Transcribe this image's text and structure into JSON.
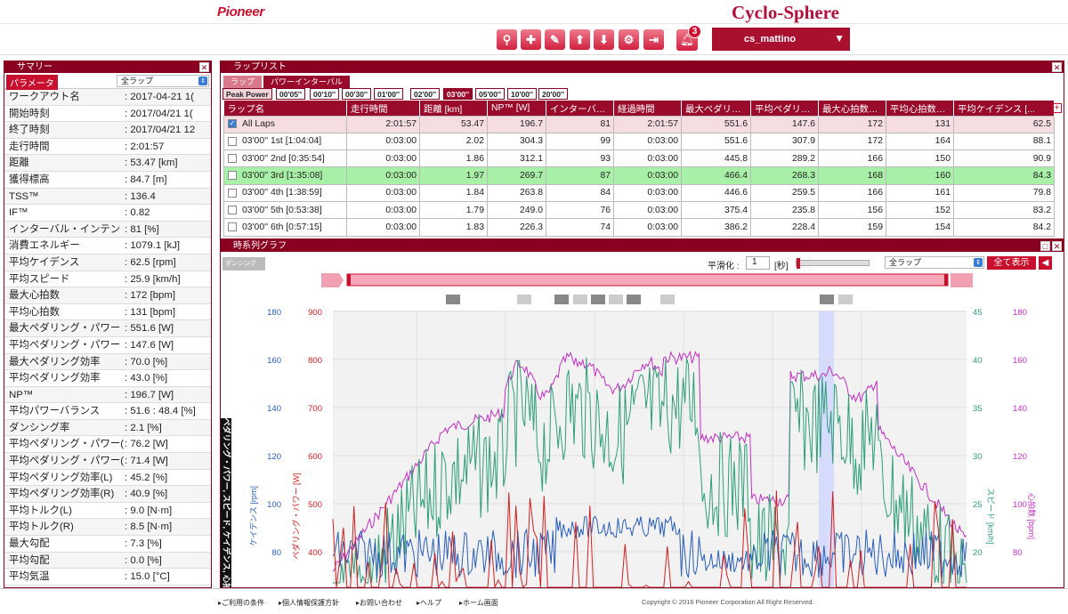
{
  "header": {
    "logo": "Pioneer",
    "brand": "Cyclo-Sphere",
    "user": "cs_mattino",
    "notify_count": "3"
  },
  "summary": {
    "title": "サマリー",
    "param_label": "パラメータ",
    "lap_select": "全ラップ",
    "rows": [
      {
        "k": "ワークアウト名",
        "v": ": 2017-04-21 1("
      },
      {
        "k": "開始時刻",
        "v": ": 2017/04/21 1("
      },
      {
        "k": "終了時刻",
        "v": ": 2017/04/21 12"
      },
      {
        "k": "走行時間",
        "v": ": 2:01:57"
      },
      {
        "k": "距離",
        "v": ": 53.47 [km]"
      },
      {
        "k": "獲得標高",
        "v": ": 84.7 [m]"
      },
      {
        "k": "TSS™",
        "v": ": 136.4"
      },
      {
        "k": "IF™",
        "v": ": 0.82"
      },
      {
        "k": "インターバル・インテン",
        "v": ": 81 [%]"
      },
      {
        "k": "消費エネルギー",
        "v": ": 1079.1 [kJ]"
      },
      {
        "k": "平均ケイデンス",
        "v": ": 62.5 [rpm]"
      },
      {
        "k": "平均スピード",
        "v": ": 25.9 [km/h]"
      },
      {
        "k": "最大心拍数",
        "v": ": 172 [bpm]"
      },
      {
        "k": "平均心拍数",
        "v": ": 131 [bpm]"
      },
      {
        "k": "最大ペダリング・パワー",
        "v": ": 551.6 [W]"
      },
      {
        "k": "平均ペダリング・パワー",
        "v": ": 147.6 [W]"
      },
      {
        "k": "最大ペダリング効率",
        "v": ": 70.0 [%]"
      },
      {
        "k": "平均ペダリング効率",
        "v": ": 43.0 [%]"
      },
      {
        "k": "NP™",
        "v": ": 196.7 [W]"
      },
      {
        "k": "平均パワーバランス",
        "v": ": 51.6 : 48.4 [%]"
      },
      {
        "k": "ダンシング率",
        "v": ": 2.1 [%]"
      },
      {
        "k": "平均ペダリング・パワー(L",
        "v": ": 76.2 [W]"
      },
      {
        "k": "平均ペダリング・パワー(F",
        "v": ": 71.4 [W]"
      },
      {
        "k": "平均ペダリング効率(L)",
        "v": ": 45.2 [%]"
      },
      {
        "k": "平均ペダリング効率(R)",
        "v": ": 40.9 [%]"
      },
      {
        "k": "平均トルク(L)",
        "v": ": 9.0 [N·m]"
      },
      {
        "k": "平均トルク(R)",
        "v": ": 8.5 [N·m]"
      },
      {
        "k": "最大勾配",
        "v": ": 7.3 [%]"
      },
      {
        "k": "平均勾配",
        "v": ": 0.0 [%]"
      },
      {
        "k": "平均気温",
        "v": ": 15.0 [°C]"
      }
    ]
  },
  "laplist": {
    "title": "ラップリスト",
    "tab_lap": "ラップ",
    "tab_interval": "パワーインターバル",
    "peak_label": "Peak Power",
    "peak_tabs": [
      "00'05''",
      "00'10''",
      "00'30''",
      "01'00''",
      "02'00''",
      "03'00''",
      "05'00''",
      "10'00''",
      "20'00''"
    ],
    "columns": [
      "ラップ名",
      "走行時間",
      "距離 [km]",
      "NP™ [W]",
      "インターバ…",
      "経過時間",
      "最大ペダリ…",
      "平均ペダリ…",
      "最大心拍数…",
      "平均心拍数…",
      "平均ケイデンス [..."
    ],
    "rows": [
      [
        "All Laps",
        "2:01:57",
        "53.47",
        "196.7",
        "81",
        "2:01:57",
        "551.6",
        "147.6",
        "172",
        "131",
        "62.5"
      ],
      [
        "03'00'' 1st [1:04:04]",
        "0:03:00",
        "2.02",
        "304.3",
        "99",
        "0:03:00",
        "551.6",
        "307.9",
        "172",
        "164",
        "88.1"
      ],
      [
        "03'00'' 2nd [0:35:54]",
        "0:03:00",
        "1.86",
        "312.1",
        "93",
        "0:03:00",
        "445.8",
        "289.2",
        "166",
        "150",
        "90.9"
      ],
      [
        "03'00'' 3rd [1:35:08]",
        "0:03:00",
        "1.97",
        "269.7",
        "87",
        "0:03:00",
        "466.4",
        "268.3",
        "168",
        "160",
        "84.3"
      ],
      [
        "03'00'' 4th [1:38:59]",
        "0:03:00",
        "1.84",
        "263.8",
        "84",
        "0:03:00",
        "446.6",
        "259.5",
        "166",
        "161",
        "79.8"
      ],
      [
        "03'00'' 5th [0:53:38]",
        "0:03:00",
        "1.79",
        "249.0",
        "76",
        "0:03:00",
        "375.4",
        "235.8",
        "156",
        "152",
        "83.2"
      ],
      [
        "03'00'' 6th [0:57:15]",
        "0:03:00",
        "1.83",
        "226.3",
        "74",
        "0:03:00",
        "386.2",
        "228.4",
        "159",
        "154",
        "84.2"
      ]
    ]
  },
  "graph": {
    "title": "時系列グラフ",
    "smooth_label": "平滑化 :",
    "smooth_value": "1",
    "smooth_unit": "[秒]",
    "lap_select": "全ラップ",
    "show_all": "全て表示",
    "dancing_label": "ダンシング",
    "vertical_tab": "ペダリング・パワー, スピード, ケイデンス, 心拍数",
    "axis_cadence": {
      "label": "ケイデンス [rpm]",
      "ticks": [
        "180",
        "160",
        "140",
        "120",
        "100",
        "80"
      ],
      "color": "#2b5fb8"
    },
    "axis_power": {
      "label": "ペダリング・パワー [W]",
      "ticks": [
        "900",
        "800",
        "700",
        "600",
        "500",
        "400"
      ],
      "color": "#d02020"
    },
    "axis_speed": {
      "label": "スピード [km/h]",
      "ticks": [
        "45",
        "40",
        "35",
        "30",
        "25",
        "20"
      ],
      "color": "#2e9e78"
    },
    "axis_hr": {
      "label": "心拍数 [bpm]",
      "ticks": [
        "180",
        "160",
        "140",
        "120",
        "100",
        "80"
      ],
      "color": "#c030c0"
    }
  },
  "footer": {
    "links": [
      "ご利用の条件",
      "個人情報保護方針",
      "お問い合わせ",
      "ヘルプ",
      "ホーム画面"
    ],
    "copyright": "Copyright © 2016 Pioneer Corporation All Right Reserved."
  }
}
